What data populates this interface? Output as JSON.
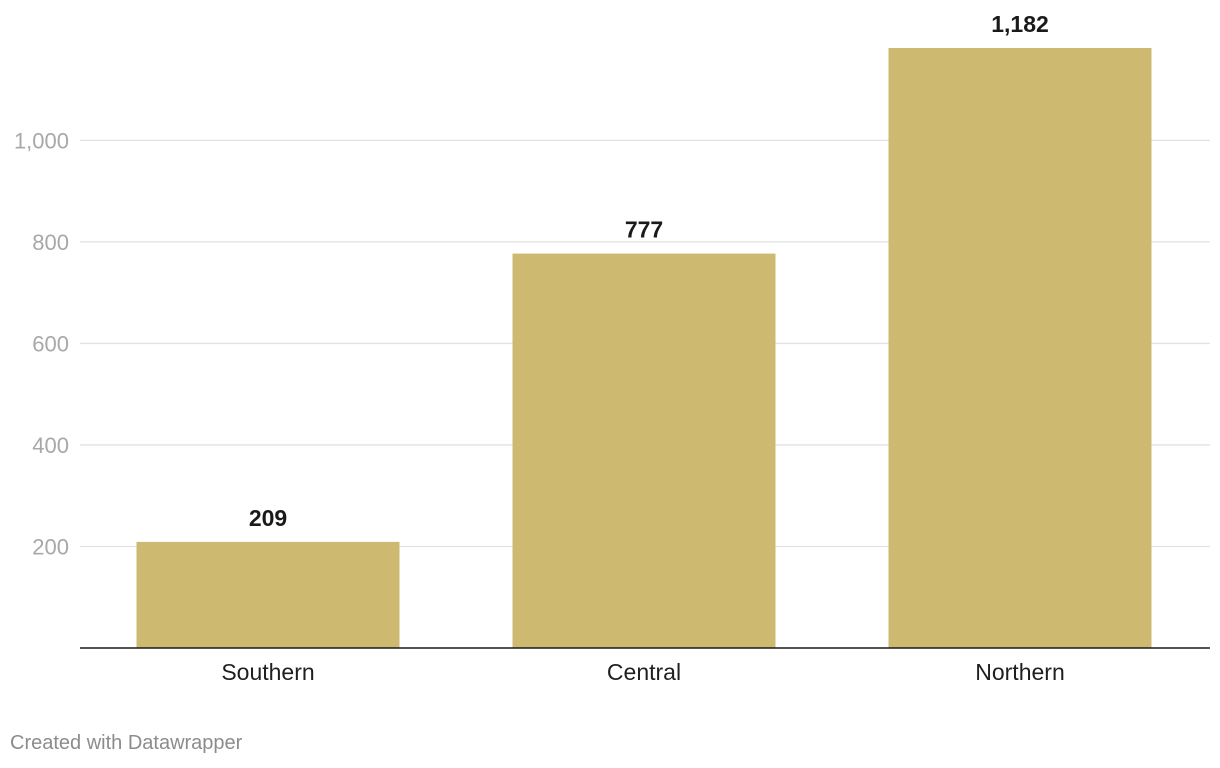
{
  "chart_data": {
    "type": "bar",
    "categories": [
      "Southern",
      "Central",
      "Northern"
    ],
    "values": [
      209,
      777,
      1182
    ],
    "value_labels": [
      "209",
      "777",
      "1,182"
    ],
    "yticks": [
      200,
      400,
      600,
      800,
      1000
    ],
    "ytick_labels": [
      "200",
      "400",
      "600",
      "800",
      "1,000"
    ],
    "ylim": [
      0,
      1182
    ],
    "grid": true,
    "bar_color": "#cdb970",
    "title": "",
    "xlabel": "",
    "ylabel": ""
  },
  "footer": {
    "credit": "Created with Datawrapper"
  }
}
